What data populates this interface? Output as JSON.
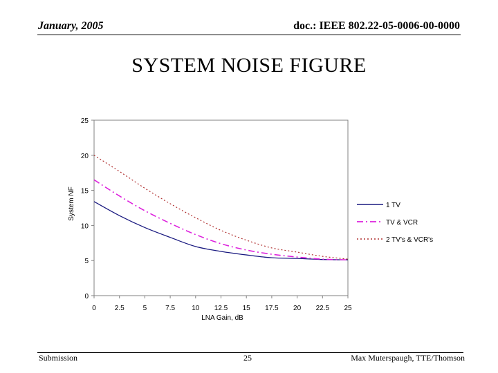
{
  "header": {
    "date": "January, 2005",
    "doc": "doc.: IEEE 802.22-05-0006-00-0000"
  },
  "title": "SYSTEM NOISE FIGURE",
  "footer": {
    "left": "Submission",
    "page": "25",
    "right": "Max Muterspaugh, TTE/Thomson"
  },
  "chart_data": {
    "type": "line",
    "title": "",
    "xlabel": "LNA Gain, dB",
    "ylabel": "System NF",
    "xlim": [
      0,
      25
    ],
    "ylim": [
      0,
      25
    ],
    "xticks": [
      "0",
      "2.5",
      "5",
      "7.5",
      "10",
      "12.5",
      "15",
      "17.5",
      "20",
      "22.5",
      "25"
    ],
    "yticks": [
      "0",
      "5",
      "10",
      "15",
      "20",
      "25"
    ],
    "grid": false,
    "legend_position": "right",
    "x": [
      0,
      2.5,
      5,
      7.5,
      10,
      12.5,
      15,
      17.5,
      20,
      22.5,
      25
    ],
    "series": [
      {
        "name": "1 TV",
        "style": "solid",
        "color": "#1a1a80",
        "values": [
          13.4,
          11.4,
          9.7,
          8.3,
          7.0,
          6.3,
          5.8,
          5.4,
          5.3,
          5.15,
          5.1
        ]
      },
      {
        "name": "TV & VCR",
        "style": "dashdot",
        "color": "#dd22dd",
        "values": [
          16.5,
          14.2,
          12.1,
          10.3,
          8.7,
          7.4,
          6.5,
          5.9,
          5.5,
          5.2,
          5.1
        ]
      },
      {
        "name": "2 TV's & VCR's",
        "style": "dotted",
        "color": "#b03030",
        "values": [
          20.0,
          17.7,
          15.3,
          13.1,
          11.1,
          9.3,
          7.9,
          6.8,
          6.2,
          5.6,
          5.2
        ]
      }
    ]
  }
}
